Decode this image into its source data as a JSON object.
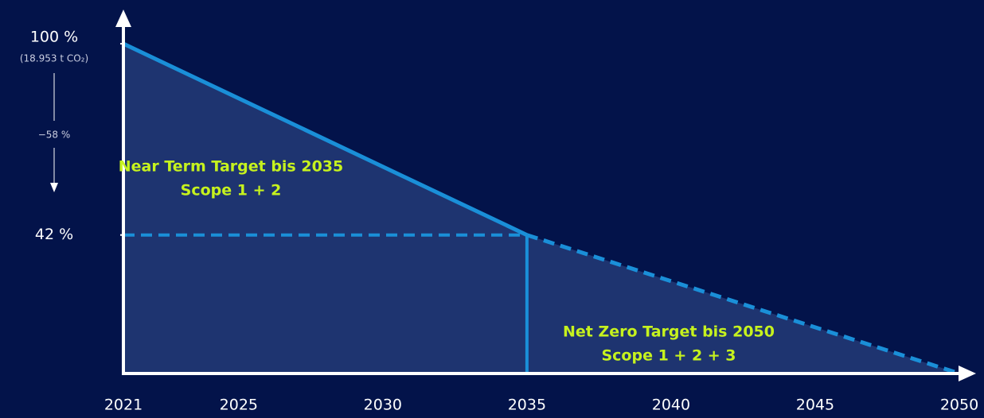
{
  "chart_data": {
    "type": "line",
    "xlim": [
      2021,
      2050
    ],
    "xticks": [
      2021,
      2025,
      2030,
      2035,
      2040,
      2045,
      2050
    ],
    "ylim": [
      0,
      100
    ],
    "yticks": [
      {
        "value": 100,
        "label": "100 %"
      },
      {
        "value": 42,
        "label": "42 %"
      }
    ],
    "series": [
      {
        "x": [
          2021,
          2035
        ],
        "values": [
          100,
          42
        ],
        "color": "#1a8fd8",
        "style": "solid"
      },
      {
        "x": [
          2035,
          2050
        ],
        "values": [
          42,
          0
        ],
        "color": "#1a8fd8",
        "style": "dashed"
      }
    ],
    "area_color": "#1e3470",
    "baseline_note": "(18.953 t CO₂)",
    "reduction_note": "−58 %",
    "annotations": [
      {
        "lines": [
          "Near Term Target bis 2035",
          "Scope 1 + 2"
        ]
      },
      {
        "lines": [
          "Net Zero Target bis 2050",
          "Scope 1 + 2 + 3"
        ]
      }
    ]
  }
}
